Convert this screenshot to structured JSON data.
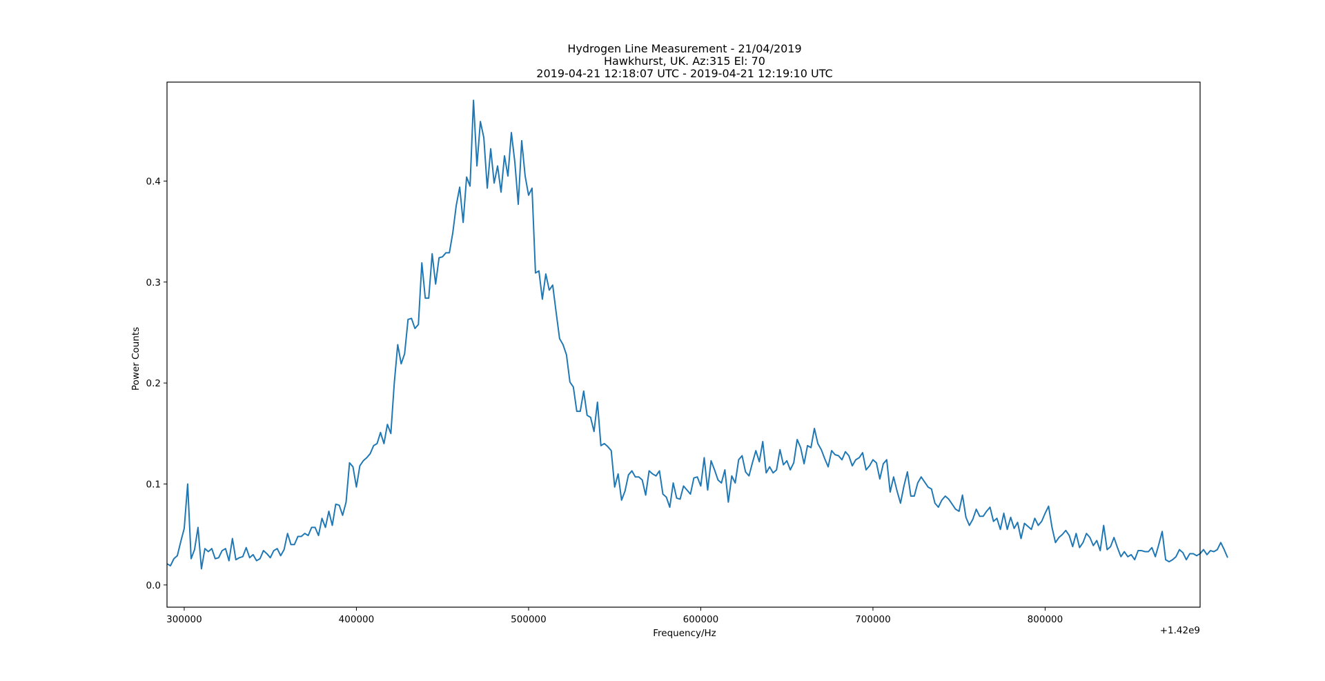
{
  "chart_data": {
    "type": "line",
    "title_lines": [
      "Hydrogen Line Measurement - 21/04/2019",
      "Hawkhurst, UK. Az:315 El: 70",
      "2019-04-21 12:18:07 UTC - 2019-04-21 12:19:10 UTC"
    ],
    "xlabel": "Frequency/Hz",
    "ylabel": "Power Counts",
    "x_offset_label": "+1.42e9",
    "xlim": [
      290000,
      890000
    ],
    "ylim": [
      -0.022,
      0.498
    ],
    "x_ticks": [
      300000,
      400000,
      500000,
      600000,
      700000,
      800000
    ],
    "x_tick_labels": [
      "300000",
      "400000",
      "500000",
      "600000",
      "700000",
      "800000"
    ],
    "y_ticks": [
      0.0,
      0.1,
      0.2,
      0.3,
      0.4
    ],
    "y_tick_labels": [
      "0.0",
      "0.1",
      "0.2",
      "0.3",
      "0.4"
    ],
    "grid": false,
    "line_color": "#1f77b4",
    "series": [
      {
        "x_start": 290000,
        "x_step": 2000,
        "values": [
          0.021,
          0.019,
          0.026,
          0.029,
          0.043,
          0.056,
          0.1,
          0.026,
          0.035,
          0.057,
          0.016,
          0.036,
          0.033,
          0.036,
          0.026,
          0.027,
          0.034,
          0.036,
          0.024,
          0.046,
          0.025,
          0.027,
          0.028,
          0.037,
          0.027,
          0.03,
          0.024,
          0.026,
          0.034,
          0.031,
          0.027,
          0.034,
          0.036,
          0.029,
          0.035,
          0.051,
          0.04,
          0.04,
          0.048,
          0.048,
          0.051,
          0.049,
          0.057,
          0.057,
          0.049,
          0.066,
          0.057,
          0.073,
          0.059,
          0.08,
          0.079,
          0.069,
          0.082,
          0.121,
          0.117,
          0.097,
          0.118,
          0.123,
          0.126,
          0.13,
          0.138,
          0.14,
          0.151,
          0.14,
          0.159,
          0.15,
          0.2,
          0.238,
          0.219,
          0.229,
          0.263,
          0.264,
          0.254,
          0.258,
          0.319,
          0.284,
          0.284,
          0.328,
          0.298,
          0.324,
          0.325,
          0.329,
          0.329,
          0.349,
          0.376,
          0.394,
          0.359,
          0.404,
          0.395,
          0.48,
          0.415,
          0.459,
          0.443,
          0.393,
          0.432,
          0.398,
          0.415,
          0.389,
          0.425,
          0.405,
          0.448,
          0.419,
          0.377,
          0.44,
          0.405,
          0.386,
          0.393,
          0.309,
          0.311,
          0.283,
          0.308,
          0.292,
          0.297,
          0.27,
          0.244,
          0.238,
          0.228,
          0.201,
          0.196,
          0.172,
          0.172,
          0.192,
          0.168,
          0.166,
          0.152,
          0.181,
          0.138,
          0.14,
          0.137,
          0.133,
          0.097,
          0.11,
          0.084,
          0.093,
          0.109,
          0.113,
          0.107,
          0.107,
          0.104,
          0.089,
          0.113,
          0.11,
          0.108,
          0.113,
          0.09,
          0.087,
          0.077,
          0.101,
          0.086,
          0.085,
          0.098,
          0.094,
          0.09,
          0.106,
          0.107,
          0.098,
          0.126,
          0.094,
          0.123,
          0.114,
          0.104,
          0.101,
          0.114,
          0.082,
          0.108,
          0.101,
          0.124,
          0.128,
          0.112,
          0.108,
          0.121,
          0.133,
          0.122,
          0.142,
          0.111,
          0.117,
          0.111,
          0.114,
          0.134,
          0.119,
          0.123,
          0.114,
          0.121,
          0.144,
          0.136,
          0.12,
          0.138,
          0.136,
          0.155,
          0.14,
          0.134,
          0.125,
          0.117,
          0.133,
          0.129,
          0.128,
          0.124,
          0.132,
          0.128,
          0.118,
          0.124,
          0.126,
          0.131,
          0.114,
          0.118,
          0.124,
          0.121,
          0.105,
          0.12,
          0.124,
          0.092,
          0.107,
          0.093,
          0.081,
          0.098,
          0.112,
          0.088,
          0.088,
          0.101,
          0.107,
          0.102,
          0.097,
          0.095,
          0.081,
          0.077,
          0.084,
          0.088,
          0.085,
          0.08,
          0.075,
          0.073,
          0.089,
          0.067,
          0.059,
          0.065,
          0.075,
          0.068,
          0.068,
          0.073,
          0.077,
          0.063,
          0.066,
          0.055,
          0.071,
          0.055,
          0.067,
          0.056,
          0.062,
          0.046,
          0.061,
          0.058,
          0.055,
          0.066,
          0.059,
          0.063,
          0.071,
          0.078,
          0.057,
          0.042,
          0.047,
          0.05,
          0.054,
          0.049,
          0.038,
          0.051,
          0.037,
          0.042,
          0.051,
          0.047,
          0.039,
          0.044,
          0.034,
          0.059,
          0.035,
          0.038,
          0.047,
          0.037,
          0.028,
          0.033,
          0.028,
          0.03,
          0.025,
          0.034,
          0.034,
          0.033,
          0.033,
          0.037,
          0.028,
          0.04,
          0.053,
          0.025,
          0.023,
          0.025,
          0.028,
          0.035,
          0.032,
          0.025,
          0.031,
          0.031,
          0.029,
          0.031,
          0.035,
          0.03,
          0.034,
          0.033,
          0.035,
          0.042,
          0.035,
          0.027
        ]
      }
    ]
  }
}
